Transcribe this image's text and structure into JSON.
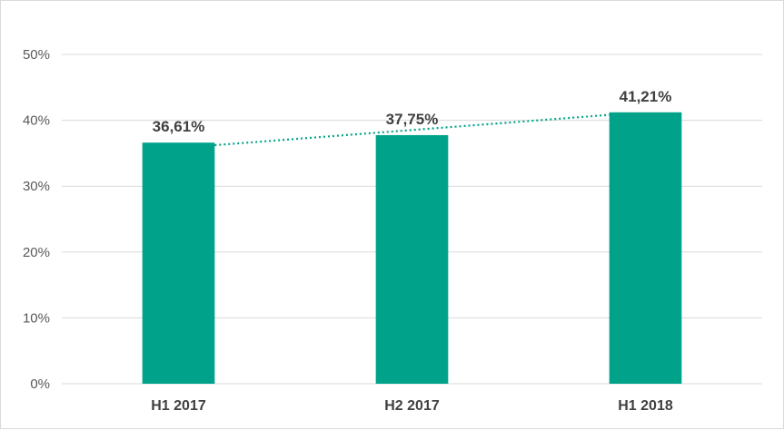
{
  "chart_data": {
    "type": "bar",
    "categories": [
      "H1 2017",
      "H2 2017",
      "H1 2018"
    ],
    "values": [
      36.61,
      37.75,
      41.21
    ],
    "data_labels": [
      "36,61%",
      "37,75%",
      "41,21%"
    ],
    "ylim": [
      0,
      50
    ],
    "y_ticks": [
      0,
      10,
      20,
      30,
      40,
      50
    ],
    "y_tick_labels": [
      "0%",
      "10%",
      "20%",
      "30%",
      "40%",
      "50%"
    ],
    "grid": true,
    "trendline": "linear",
    "bar_color": "#00A38A",
    "trend_color": "#00A38A"
  }
}
